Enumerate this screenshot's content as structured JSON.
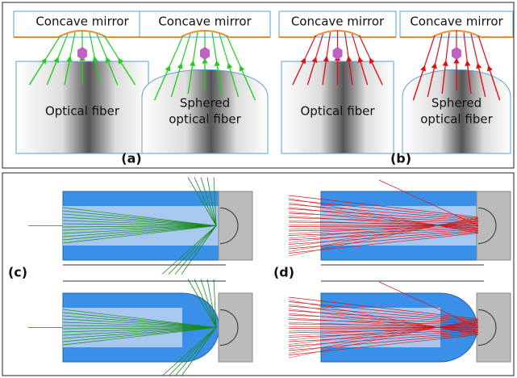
{
  "panels": [
    {
      "label": "(a)",
      "diagrams": [
        {
          "mirror": "Concave mirror",
          "fiber": [
            "Optical fiber"
          ]
        },
        {
          "mirror": "Concave mirror",
          "fiber": [
            "Sphered",
            "optical fiber"
          ]
        }
      ]
    },
    {
      "label": "(b)",
      "diagrams": [
        {
          "mirror": "Concave mirror",
          "fiber": [
            "Optical fiber"
          ]
        },
        {
          "mirror": "Concave mirror",
          "fiber": [
            "Sphered",
            "optical fiber"
          ]
        }
      ]
    },
    {
      "label": "(c)"
    },
    {
      "label": "(d)"
    }
  ]
}
